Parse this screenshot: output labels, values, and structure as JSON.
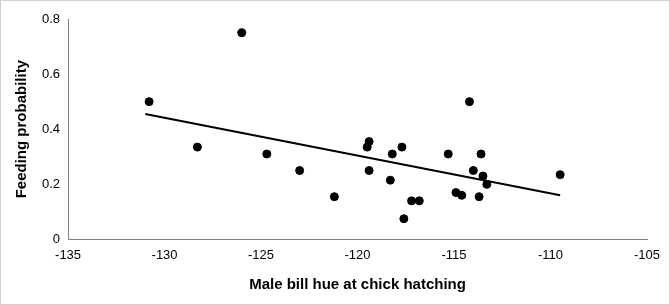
{
  "chart_data": {
    "type": "scatter",
    "x_label": "Male bill hue at chick hatching",
    "y_label": "Feeding probability",
    "xlim": [
      -135,
      -105
    ],
    "xticks": [
      -135,
      -130,
      -125,
      -120,
      -115,
      -110,
      -105
    ],
    "ylim": [
      0,
      0.8
    ],
    "yticks": [
      0,
      0.2,
      0.4,
      0.6,
      0.8
    ],
    "grid": false,
    "series": [
      {
        "type": "scatter",
        "marker": "circle",
        "color": "#000000",
        "x": [
          -130.8,
          -128.3,
          -126.0,
          -124.7,
          -123.0,
          -121.2,
          -119.4,
          -119.5,
          -119.4,
          -118.3,
          -118.2,
          -117.7,
          -117.6,
          -117.2,
          -116.8,
          -115.3,
          -114.9,
          -114.6,
          -114.2,
          -114.0,
          -113.7,
          -113.6,
          -113.5,
          -113.3,
          -109.5
        ],
        "values": [
          0.5,
          0.335,
          0.75,
          0.31,
          0.25,
          0.155,
          0.355,
          0.335,
          0.25,
          0.215,
          0.31,
          0.335,
          0.075,
          0.14,
          0.14,
          0.31,
          0.17,
          0.16,
          0.5,
          0.25,
          0.155,
          0.31,
          0.23,
          0.2,
          0.235
        ]
      },
      {
        "type": "line",
        "line_style": "solid",
        "color": "#000000",
        "x": [
          -131,
          -109.5
        ],
        "values": [
          0.455,
          0.16
        ]
      }
    ]
  }
}
